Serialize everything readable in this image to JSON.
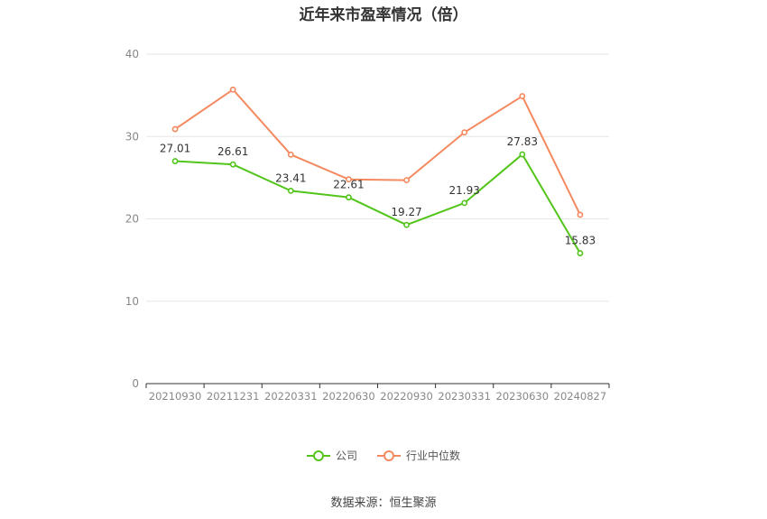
{
  "chart_data": {
    "type": "line",
    "title": "近年来市盈率情况（倍）",
    "categories": [
      "20210930",
      "20211231",
      "20220331",
      "20220630",
      "20220930",
      "20230331",
      "20230630",
      "20240827"
    ],
    "ylim": [
      0,
      40
    ],
    "yticks": [
      0,
      10,
      20,
      30,
      40
    ],
    "grid": true,
    "legend_position": "bottom",
    "series": [
      {
        "name": "公司",
        "color": "#52c41a",
        "values": [
          27.01,
          26.61,
          23.41,
          22.61,
          19.27,
          21.93,
          27.83,
          15.83
        ],
        "labels": [
          "27.01",
          "26.61",
          "23.41",
          "22.61",
          "19.27",
          "21.93",
          "27.83",
          "15.83"
        ]
      },
      {
        "name": "行业中位数",
        "color": "#f4895f",
        "values": [
          30.9,
          35.7,
          27.8,
          24.8,
          24.7,
          30.5,
          34.9,
          20.5
        ]
      }
    ]
  },
  "source": "数据来源：恒生聚源"
}
